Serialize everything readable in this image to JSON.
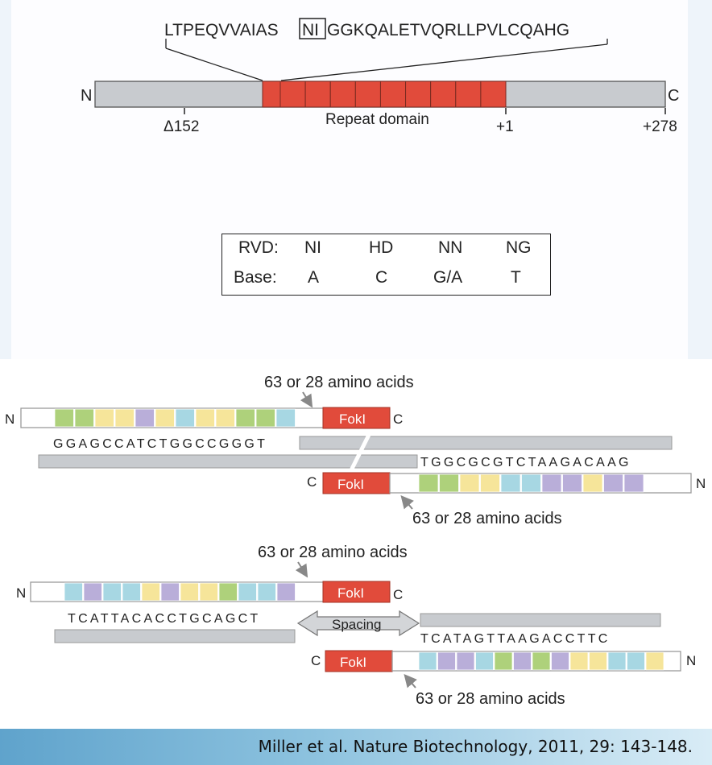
{
  "top_diagram": {
    "repeat_sequence_before": "LTPEQVVAIAS",
    "repeat_sequence_boxed": "NI",
    "repeat_sequence_after": "GGKQALETVQRLLPVLCQAHG",
    "n_label": "N",
    "c_label": "C",
    "repeat_domain_label": "Repeat domain",
    "tick_delta152": "Δ152",
    "tick_plus1": "+1",
    "tick_plus278": "+278",
    "repeat_count": 10
  },
  "rvd_table": {
    "rvd_label": "RVD:",
    "base_label": "Base:",
    "rvds": [
      "NI",
      "HD",
      "NN",
      "NG"
    ],
    "bases": [
      "A",
      "C",
      "G/A",
      "T"
    ]
  },
  "pair_1": {
    "top_amino_label": "63 or 28 amino acids",
    "bottom_amino_label": "63 or 28 amino acids",
    "top_n": "N",
    "top_c": "C",
    "bottom_c": "C",
    "bottom_n": "N",
    "fokl": "FokI",
    "seq_top": "GGAGCCATCTGGCCGGGT",
    "seq_bottom": "TGGCGCGTCTAAGACAAG",
    "top_repeats": [
      "green",
      "green",
      "yellow",
      "yellow",
      "purple",
      "yellow",
      "blue",
      "yellow",
      "yellow",
      "green",
      "green",
      "blue"
    ],
    "bottom_repeats": [
      "green",
      "green",
      "yellow",
      "yellow",
      "blue",
      "blue",
      "purple",
      "purple",
      "yellow",
      "purple",
      "purple"
    ]
  },
  "pair_2": {
    "top_amino_label": "63 or 28 amino acids",
    "bottom_amino_label": "63 or 28 amino acids",
    "top_n": "N",
    "top_c": "C",
    "bottom_c": "C",
    "bottom_n": "N",
    "fokl": "FokI",
    "spacing_label": "Spacing",
    "seq_top": "TCATTACACCTGCAGCT",
    "seq_bottom": "TCATAGTTAAGACCTTC",
    "top_repeats": [
      "blue",
      "purple",
      "blue",
      "blue",
      "yellow",
      "purple",
      "yellow",
      "yellow",
      "green",
      "blue",
      "blue",
      "purple"
    ],
    "bottom_repeats": [
      "blue",
      "purple",
      "purple",
      "blue",
      "green",
      "purple",
      "green",
      "purple",
      "yellow",
      "yellow",
      "blue",
      "blue",
      "yellow"
    ]
  },
  "colors": {
    "red": "#e14b3b",
    "gray": "#c8cbcf",
    "green": "#aed17b",
    "yellow": "#f6e59a",
    "purple": "#b9aed9",
    "blue": "#a7d7e3"
  },
  "footer": {
    "citation": "Miller et al. Nature Biotechnology, 2011, 29: 143-148."
  }
}
